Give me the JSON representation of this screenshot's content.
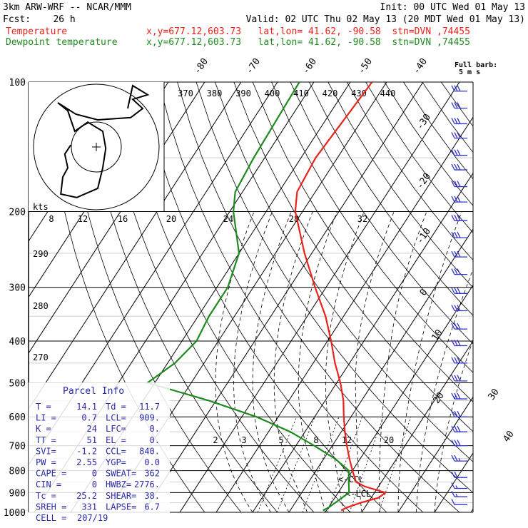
{
  "header": {
    "title": "3km ARW-WRF -- NCAR/MMM",
    "init": "Init: 00 UTC Wed 01 May 13",
    "fcst": "Fcst:    26 h",
    "valid": "Valid: 02 UTC Thu 02 May 13 (20 MDT Wed 01 May 13)",
    "temp_line": "Temperature",
    "dew_line": "Dewpoint temperature",
    "temp_info": "x,y=677.12,603.73   lat,lon= 41.62, -90.58  stn=DVN ,74455",
    "dew_info": "x,y=677.12,603.73   lat,lon= 41.62, -90.58  stn=DVN ,74455"
  },
  "colors": {
    "temperature": "#e8231c",
    "dewpoint": "#1f8a1f",
    "parcel_text": "#2a2aa8",
    "wind_barb": "#3333cc",
    "grid": "#000000"
  },
  "chart_data": {
    "type": "line",
    "pressure_levels": [
      100,
      200,
      300,
      400,
      500,
      600,
      700,
      800,
      900,
      1000
    ],
    "pressure_labels": [
      "100",
      "200",
      "300",
      "400",
      "500",
      "600",
      "700",
      "800",
      "900",
      "1000"
    ],
    "series": [
      {
        "name": "Temperature",
        "points": [
          [
            100,
            -54
          ],
          [
            150,
            -56
          ],
          [
            180,
            -55
          ],
          [
            200,
            -52
          ],
          [
            250,
            -42
          ],
          [
            300,
            -33
          ],
          [
            350,
            -25
          ],
          [
            400,
            -19
          ],
          [
            450,
            -14
          ],
          [
            500,
            -9
          ],
          [
            550,
            -5
          ],
          [
            600,
            -2
          ],
          [
            650,
            1
          ],
          [
            700,
            4
          ],
          [
            750,
            7
          ],
          [
            800,
            10
          ],
          [
            850,
            13
          ],
          [
            870,
            16
          ],
          [
            900,
            23
          ],
          [
            925,
            22
          ],
          [
            950,
            18
          ],
          [
            975,
            15
          ],
          [
            990,
            14
          ]
        ]
      },
      {
        "name": "Dewpoint temperature",
        "points": [
          [
            100,
            -74
          ],
          [
            150,
            -73
          ],
          [
            180,
            -72
          ],
          [
            200,
            -69
          ],
          [
            250,
            -60
          ],
          [
            300,
            -57
          ],
          [
            350,
            -57
          ],
          [
            400,
            -56
          ],
          [
            450,
            -58
          ],
          [
            500,
            -62
          ],
          [
            550,
            -42
          ],
          [
            600,
            -26
          ],
          [
            650,
            -14
          ],
          [
            700,
            -5
          ],
          [
            750,
            3
          ],
          [
            800,
            9
          ],
          [
            850,
            11
          ],
          [
            900,
            13
          ],
          [
            950,
            11
          ],
          [
            975,
            10
          ],
          [
            990,
            9
          ]
        ]
      }
    ],
    "isotherm_labels": [
      "-80",
      "-70",
      "-60",
      "-50",
      "-40",
      "-30",
      "-20",
      "-10",
      "0",
      "10",
      "20",
      "30",
      "40"
    ],
    "theta_labels": [
      "370",
      "380",
      "390",
      "400",
      "410",
      "420",
      "430",
      "440"
    ],
    "mixing_ratio_labels": [
      "2",
      "3",
      "5",
      "8",
      "12",
      "20"
    ],
    "height_labels": [
      "290",
      "280",
      "270"
    ],
    "hodograph": {
      "label": "kts",
      "ring_labels": [
        "8",
        "12",
        "16",
        "20",
        "24",
        "28",
        "32"
      ],
      "path": [
        [
          0.28,
          0.52
        ],
        [
          0.22,
          0.6
        ],
        [
          0.25,
          0.72
        ],
        [
          0.2,
          0.8
        ],
        [
          0.18,
          0.95
        ],
        [
          0.34,
          0.98
        ],
        [
          0.55,
          0.9
        ],
        [
          0.6,
          0.72
        ],
        [
          0.63,
          0.55
        ],
        [
          0.6,
          0.4
        ],
        [
          0.45,
          0.32
        ],
        [
          0.32,
          0.4
        ],
        [
          0.25,
          0.22
        ],
        [
          0.15,
          0.15
        ],
        [
          0.33,
          0.25
        ],
        [
          0.55,
          0.3
        ],
        [
          0.88,
          0.28
        ],
        [
          1.0,
          0.2
        ],
        [
          0.9,
          0.12
        ],
        [
          1.05,
          0.08
        ],
        [
          0.9,
          0.0
        ],
        [
          0.85,
          0.2
        ]
      ]
    },
    "parcel_info": {
      "title": "Parcel Info",
      "rows": [
        [
          "T  =",
          "14.1",
          "Td =",
          "11.7"
        ],
        [
          "LI =",
          "0.7",
          "LCL=",
          "909."
        ],
        [
          "K  =",
          "24",
          "LFC=",
          "0."
        ],
        [
          "TT =",
          "51",
          "EL =",
          "0."
        ],
        [
          "SVI=",
          "-1.2",
          "CCL=",
          "840."
        ],
        [
          "PW =",
          "2.55",
          "YGP=",
          "0.0"
        ],
        [
          "CAPE =",
          "0",
          "SWEAT=",
          "362"
        ],
        [
          "CIN  =",
          "0",
          "HWBZ=",
          "2776."
        ],
        [
          "Tc =",
          "25.2",
          "SHEAR=",
          "38."
        ],
        [
          "SREH =",
          "331",
          "LAPSE=",
          "6.7"
        ],
        [
          "CELL =",
          "207/19",
          "",
          ""
        ]
      ]
    },
    "markers": {
      "ccl": "<-CCL",
      "lcl": "<-LCL"
    },
    "wind_barbs": {
      "title": "Full barb:",
      "unit": "5 m s",
      "levels": [
        {
          "p": 105,
          "speed": 30,
          "dir": 250
        },
        {
          "p": 115,
          "speed": 30,
          "dir": 250
        },
        {
          "p": 125,
          "speed": 30,
          "dir": 250
        },
        {
          "p": 135,
          "speed": 30,
          "dir": 250
        },
        {
          "p": 148,
          "speed": 30,
          "dir": 250
        },
        {
          "p": 160,
          "speed": 30,
          "dir": 250
        },
        {
          "p": 175,
          "speed": 30,
          "dir": 250
        },
        {
          "p": 190,
          "speed": 30,
          "dir": 250
        },
        {
          "p": 210,
          "speed": 30,
          "dir": 250
        },
        {
          "p": 230,
          "speed": 30,
          "dir": 250
        },
        {
          "p": 255,
          "speed": 30,
          "dir": 250
        },
        {
          "p": 280,
          "speed": 30,
          "dir": 250
        },
        {
          "p": 310,
          "speed": 30,
          "dir": 250
        },
        {
          "p": 340,
          "speed": 30,
          "dir": 250
        },
        {
          "p": 375,
          "speed": 30,
          "dir": 250
        },
        {
          "p": 410,
          "speed": 30,
          "dir": 250
        },
        {
          "p": 450,
          "speed": 30,
          "dir": 250
        },
        {
          "p": 495,
          "speed": 30,
          "dir": 250
        },
        {
          "p": 545,
          "speed": 30,
          "dir": 250
        },
        {
          "p": 600,
          "speed": 30,
          "dir": 250
        },
        {
          "p": 650,
          "speed": 30,
          "dir": 250
        },
        {
          "p": 700,
          "speed": 30,
          "dir": 250
        },
        {
          "p": 760,
          "speed": 25,
          "dir": 240
        },
        {
          "p": 830,
          "speed": 20,
          "dir": 220
        },
        {
          "p": 880,
          "speed": 15,
          "dir": 200
        },
        {
          "p": 920,
          "speed": 15,
          "dir": 190
        },
        {
          "p": 960,
          "speed": 10,
          "dir": 180
        }
      ]
    }
  }
}
